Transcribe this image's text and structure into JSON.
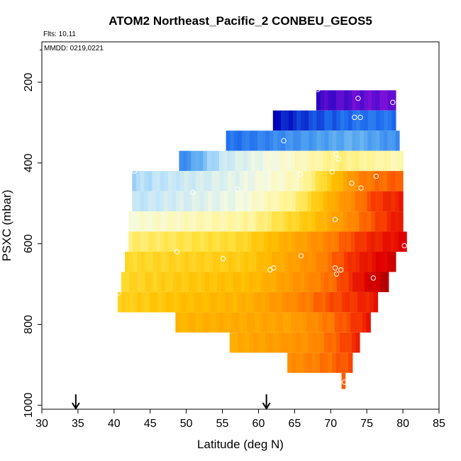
{
  "chart_data": {
    "type": "heatmap",
    "title": "ATOM2 Northeast_Pacific_2 CONBEU_GEOS5",
    "subtitle_flights": "Flts: 10,11",
    "subtitle_dates": "MMDD: 0219,0221",
    "xlabel": "Latitude (deg N)",
    "ylabel": "PSXC (mbar)",
    "xlim": [
      30,
      85
    ],
    "ylim": [
      1010,
      100
    ],
    "x_ticks": [
      30,
      35,
      40,
      45,
      50,
      55,
      60,
      65,
      70,
      75,
      80,
      85
    ],
    "y_ticks": [
      200,
      400,
      600,
      800,
      1000
    ],
    "arrow_markers_lat": [
      34.7,
      61.1
    ],
    "colors": {
      "axis": "#000000",
      "marker": "#ffffff",
      "scale": [
        "#7a10d8",
        "#0000b8",
        "#1f6ff0",
        "#5aaaf0",
        "#bfe4fa",
        "#f6fbe0",
        "#fff59a",
        "#ffe03a",
        "#ffc000",
        "#ffa000",
        "#ff8000",
        "#f73a00",
        "#e00000",
        "#a80000"
      ]
    },
    "bands": [
      {
        "p_top": 220,
        "p_bot": 270,
        "lat0": 68,
        "lat1": 79,
        "stops": [
          [
            0,
            0.5
          ],
          [
            0.6,
            0.15
          ],
          [
            1,
            0.08
          ]
        ]
      },
      {
        "p_top": 270,
        "p_bot": 320,
        "lat0": 62,
        "lat1": 79,
        "stops": [
          [
            0,
            1.1
          ],
          [
            0.35,
            1.7
          ],
          [
            0.7,
            2.1
          ],
          [
            1,
            2.1
          ]
        ]
      },
      {
        "p_top": 320,
        "p_bot": 370,
        "lat0": 55.5,
        "lat1": 79.5,
        "stops": [
          [
            0,
            2.0
          ],
          [
            0.4,
            2.6
          ],
          [
            0.75,
            3.1
          ],
          [
            1,
            2.5
          ]
        ]
      },
      {
        "p_top": 370,
        "p_bot": 420,
        "lat0": 49,
        "lat1": 80,
        "stops": [
          [
            0,
            2.3
          ],
          [
            0.2,
            4.2
          ],
          [
            0.5,
            5.3
          ],
          [
            0.72,
            6.3
          ],
          [
            1,
            5.6
          ]
        ]
      },
      {
        "p_top": 420,
        "p_bot": 470,
        "lat0": 42.5,
        "lat1": 80,
        "stops": [
          [
            0,
            3.8
          ],
          [
            0.4,
            4.7
          ],
          [
            0.62,
            5.6
          ],
          [
            0.75,
            8.0
          ],
          [
            0.85,
            10.0
          ],
          [
            1,
            10.6
          ]
        ]
      },
      {
        "p_top": 470,
        "p_bot": 520,
        "lat0": 42.5,
        "lat1": 80,
        "stops": [
          [
            0,
            4.0
          ],
          [
            0.4,
            4.9
          ],
          [
            0.6,
            6.2
          ],
          [
            0.75,
            8.8
          ],
          [
            0.9,
            11.0
          ],
          [
            1,
            11.5
          ]
        ]
      },
      {
        "p_top": 520,
        "p_bot": 570,
        "lat0": 42,
        "lat1": 80,
        "stops": [
          [
            0,
            5.1
          ],
          [
            0.45,
            6.0
          ],
          [
            0.68,
            8.0
          ],
          [
            0.85,
            10.2
          ],
          [
            1,
            11.8
          ]
        ]
      },
      {
        "p_top": 570,
        "p_bot": 620,
        "lat0": 42,
        "lat1": 80.5,
        "stops": [
          [
            0,
            6.4
          ],
          [
            0.4,
            7.2
          ],
          [
            0.65,
            9.2
          ],
          [
            0.85,
            11.2
          ],
          [
            1,
            12.0
          ]
        ]
      },
      {
        "p_top": 620,
        "p_bot": 670,
        "lat0": 41.5,
        "lat1": 79,
        "stops": [
          [
            0,
            7.2
          ],
          [
            0.45,
            7.7
          ],
          [
            0.7,
            9.6
          ],
          [
            0.85,
            11.3
          ],
          [
            1,
            12.3
          ]
        ]
      },
      {
        "p_top": 670,
        "p_bot": 720,
        "lat0": 41,
        "lat1": 78,
        "stops": [
          [
            0,
            7.3
          ],
          [
            0.5,
            8.2
          ],
          [
            0.8,
            10.4
          ],
          [
            0.9,
            11.8
          ],
          [
            1,
            12.8
          ]
        ]
      },
      {
        "p_top": 720,
        "p_bot": 770,
        "lat0": 40.5,
        "lat1": 76.5,
        "stops": [
          [
            0,
            7.5
          ],
          [
            0.5,
            8.5
          ],
          [
            0.82,
            10.7
          ],
          [
            1,
            11.6
          ]
        ]
      },
      {
        "p_top": 770,
        "p_bot": 820,
        "lat0": 48.5,
        "lat1": 75.5,
        "stops": [
          [
            0,
            8.3
          ],
          [
            0.6,
            9.0
          ],
          [
            0.85,
            10.5
          ],
          [
            1,
            11.6
          ]
        ]
      },
      {
        "p_top": 820,
        "p_bot": 870,
        "lat0": 56,
        "lat1": 74,
        "stops": [
          [
            0,
            8.6
          ],
          [
            0.6,
            9.5
          ],
          [
            0.85,
            10.6
          ],
          [
            1,
            11.4
          ]
        ]
      },
      {
        "p_top": 870,
        "p_bot": 920,
        "lat0": 64,
        "lat1": 73,
        "stops": [
          [
            0,
            9.5
          ],
          [
            0.6,
            10.2
          ],
          [
            1,
            10.8
          ]
        ]
      },
      {
        "p_top": 920,
        "p_bot": 960,
        "lat0": 71.5,
        "lat1": 72,
        "stops": [
          [
            0,
            10.4
          ],
          [
            1,
            10.4
          ]
        ]
      }
    ],
    "observations": [
      {
        "lat": 68.2,
        "p": 218
      },
      {
        "lat": 73.8,
        "p": 240
      },
      {
        "lat": 78.6,
        "p": 250
      },
      {
        "lat": 73.3,
        "p": 287
      },
      {
        "lat": 74.1,
        "p": 287
      },
      {
        "lat": 63.5,
        "p": 345
      },
      {
        "lat": 70.8,
        "p": 378
      },
      {
        "lat": 71.1,
        "p": 390
      },
      {
        "lat": 42.8,
        "p": 420
      },
      {
        "lat": 70.2,
        "p": 422
      },
      {
        "lat": 65.8,
        "p": 428
      },
      {
        "lat": 76.3,
        "p": 433
      },
      {
        "lat": 72.9,
        "p": 450
      },
      {
        "lat": 74.2,
        "p": 462
      },
      {
        "lat": 57.1,
        "p": 465
      },
      {
        "lat": 50.9,
        "p": 473
      },
      {
        "lat": 70.6,
        "p": 540
      },
      {
        "lat": 80.2,
        "p": 605
      },
      {
        "lat": 48.7,
        "p": 620
      },
      {
        "lat": 55.1,
        "p": 637
      },
      {
        "lat": 65.9,
        "p": 630
      },
      {
        "lat": 62.1,
        "p": 660
      },
      {
        "lat": 61.6,
        "p": 665
      },
      {
        "lat": 70.6,
        "p": 660
      },
      {
        "lat": 71.4,
        "p": 665
      },
      {
        "lat": 70.8,
        "p": 675
      },
      {
        "lat": 75.9,
        "p": 685
      },
      {
        "lat": 40.6,
        "p": 722
      },
      {
        "lat": 71.9,
        "p": 943
      }
    ]
  }
}
